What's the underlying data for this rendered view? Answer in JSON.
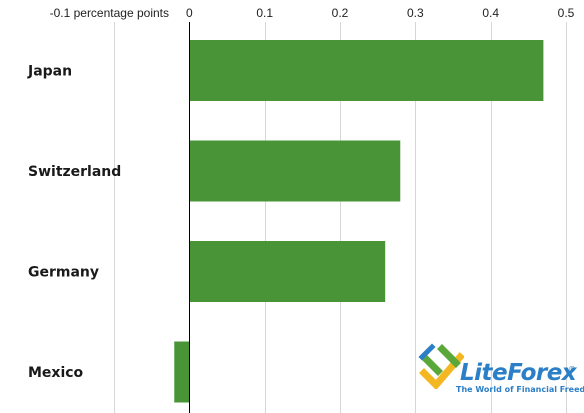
{
  "chart_data": {
    "type": "bar",
    "orientation": "horizontal",
    "categories": [
      "Japan",
      "Switzerland",
      "Germany",
      "Mexico"
    ],
    "values": [
      0.47,
      0.28,
      0.26,
      -0.02
    ],
    "xlim": [
      -0.1,
      0.5
    ],
    "xticks": [
      -0.1,
      0,
      0.1,
      0.2,
      0.3,
      0.4,
      0.5
    ],
    "tick_labels": [
      "-0.1 percentage points",
      "0",
      "0.1",
      "0.2",
      "0.3",
      "0.4",
      "0.5"
    ],
    "grid": true,
    "bar_color": "#4a9438"
  },
  "watermark": {
    "brand_part1": "Lite",
    "brand_part2": "Forex",
    "registered": "®",
    "tagline": "The World of Financial Freedom",
    "colors": {
      "blue": "#2b7fc6",
      "green": "#5aa83a",
      "yellow": "#f2b721"
    }
  }
}
